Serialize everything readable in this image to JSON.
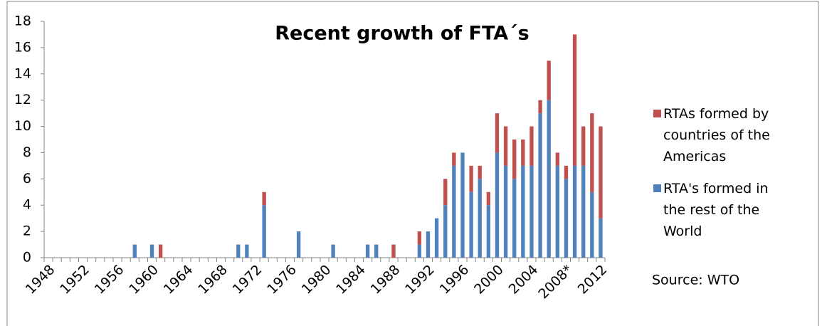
{
  "chart_data": {
    "type": "stacked_bar",
    "title": "Recent growth of FTA´s",
    "annotation": "Source: WTO",
    "categories": [
      "1948",
      null,
      null,
      null,
      "1952",
      null,
      null,
      null,
      "1956",
      null,
      null,
      null,
      "1960",
      null,
      null,
      null,
      "1964",
      null,
      null,
      null,
      "1968",
      null,
      null,
      null,
      "1972",
      null,
      null,
      null,
      "1976",
      null,
      null,
      null,
      "1980",
      null,
      null,
      null,
      "1984",
      null,
      null,
      null,
      "1988",
      null,
      null,
      null,
      "1992",
      null,
      null,
      null,
      "1996",
      null,
      null,
      null,
      "2000",
      null,
      null,
      null,
      "2004",
      null,
      null,
      null,
      "2008*",
      null,
      null,
      null,
      "2012"
    ],
    "series": [
      {
        "name": "RTA's formed in the rest of the World",
        "color": "#4f81bd",
        "values": [
          0,
          0,
          0,
          0,
          0,
          0,
          0,
          0,
          0,
          0,
          1,
          0,
          1,
          0,
          0,
          0,
          0,
          0,
          0,
          0,
          0,
          0,
          1,
          1,
          0,
          4,
          0,
          0,
          0,
          2,
          0,
          0,
          0,
          1,
          0,
          0,
          0,
          1,
          1,
          0,
          0,
          0,
          0,
          1,
          2,
          3,
          4,
          7,
          8,
          5,
          6,
          4,
          8,
          7,
          6,
          7,
          7,
          11,
          12,
          7,
          6,
          7,
          7,
          5,
          3
        ]
      },
      {
        "name": "RTAs formed by countries of the Americas",
        "color": "#c0504d",
        "values": [
          0,
          0,
          0,
          0,
          0,
          0,
          0,
          0,
          0,
          0,
          0,
          0,
          0,
          1,
          0,
          0,
          0,
          0,
          0,
          0,
          0,
          0,
          0,
          0,
          0,
          1,
          0,
          0,
          0,
          0,
          0,
          0,
          0,
          0,
          0,
          0,
          0,
          0,
          0,
          0,
          1,
          0,
          0,
          1,
          0,
          0,
          2,
          1,
          0,
          2,
          1,
          1,
          3,
          3,
          3,
          2,
          3,
          1,
          3,
          1,
          1,
          10,
          3,
          6,
          7
        ]
      }
    ],
    "ylim": [
      0,
      18
    ],
    "yticks": [
      0,
      2,
      4,
      6,
      8,
      10,
      12,
      14,
      16,
      18
    ],
    "grid": false
  }
}
